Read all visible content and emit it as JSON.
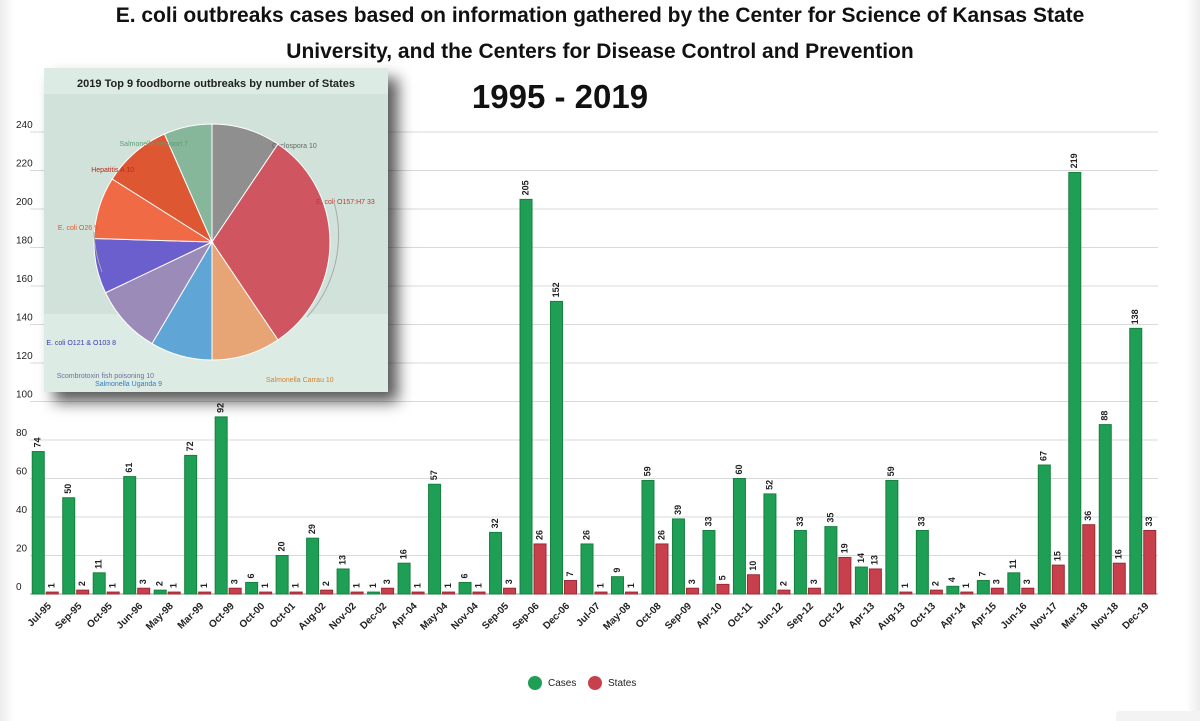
{
  "title_line1": "E. coli outbreaks cases  based on information gathered by the Center for Science of Kansas State",
  "title_line2": "University, and the Centers for Disease Control and Prevention",
  "title_years": "1995 - 2019",
  "colors": {
    "cases": "#1f9e55",
    "states": "#c9404d",
    "grid": "#d9d9d9",
    "inset_bg": "#dcebe4"
  },
  "chart_data": [
    {
      "type": "bar",
      "title": "E. coli outbreaks cases based on information gathered by the Center for Science of Kansas State University, and the Centers for Disease Control and Prevention",
      "subtitle": "1995 - 2019",
      "xlabel": "",
      "ylabel": "",
      "ylim": [
        0,
        240
      ],
      "y_ticks": [
        0,
        20,
        40,
        60,
        80,
        100,
        120,
        140,
        160,
        180,
        200,
        220,
        240
      ],
      "grid": true,
      "legend_position": "bottom-center",
      "categories": [
        "Jul-95",
        "Sep-95",
        "Oct-95",
        "Jun-96",
        "May-98",
        "Mar-99",
        "Oct-99",
        "Oct-00",
        "Oct-01",
        "Aug-02",
        "Nov-02",
        "Dec-02",
        "Apr-04",
        "May-04",
        "Nov-04",
        "Sep-05",
        "Sep-06",
        "Dec-06",
        "Jul-07",
        "May-08",
        "Oct-08",
        "Sep-09",
        "Apr-10",
        "Oct-11",
        "Jun-12",
        "Sep-12",
        "Oct-12",
        "Apr-13",
        "Aug-13",
        "Oct-13",
        "Apr-14",
        "Apr-15",
        "Jun-16",
        "Nov-17",
        "Mar-18",
        "Nov-18",
        "Dec-19"
      ],
      "tick_labels": [
        "Jul-95",
        "Sep-95",
        "Oct-95",
        "Jun-96",
        "May-98",
        "Mar-99",
        "Oct-99",
        "Oct-00",
        "Oct-01",
        "Aug-02",
        "Nov-02",
        "Dec-02",
        "Apr-04",
        "May-04",
        "Nov-04",
        "Sep-05",
        "Sep-06",
        "Dec-06",
        "Jul-07",
        "May-08",
        "Oct-08",
        "Sep-09",
        "Apr-10",
        "Oct-11",
        "Jun-12",
        "Sep-12",
        "Oct-12",
        "Apr-13",
        "Aug-13",
        "Oct-13",
        "Apr-14",
        "Apr-15",
        "Jun-16",
        "Nov-17",
        "Mar-18",
        "Nov-18",
        "Dec-19"
      ],
      "series": [
        {
          "name": "Cases",
          "values": [
            74,
            50,
            11,
            61,
            2,
            72,
            92,
            6,
            20,
            29,
            13,
            1,
            16,
            57,
            6,
            32,
            205,
            152,
            26,
            9,
            59,
            39,
            33,
            60,
            52,
            33,
            35,
            14,
            59,
            33,
            4,
            7,
            11,
            67,
            219,
            88,
            138
          ]
        },
        {
          "name": "States",
          "values": [
            1,
            2,
            1,
            3,
            1,
            1,
            3,
            1,
            1,
            2,
            1,
            3,
            1,
            1,
            1,
            3,
            26,
            7,
            1,
            1,
            26,
            3,
            5,
            10,
            2,
            3,
            19,
            13,
            1,
            2,
            1,
            3,
            3,
            15,
            36,
            16,
            33
          ]
        }
      ]
    },
    {
      "type": "pie",
      "title": "2019 Top 9 foodborne outbreaks by number of States",
      "labels": [
        "Cyclospora",
        "E. coli O157:H7",
        "Salmonella Carrau",
        "Salmonella Uganda",
        "Scombrotoxin fish poisoning",
        "E. coli O121 & O103",
        "E. coli O26",
        "Hepatitis A",
        "Salmonella Newport"
      ],
      "values": [
        10,
        33,
        10,
        9,
        10,
        8,
        9,
        10,
        7
      ],
      "slice_labels": [
        "Cyclospora 10",
        "E. coli O157:H7 33",
        "Salmonella Carrau 10",
        "Salmonella Uganda 9",
        "Scombrotoxin fish poisoning 10",
        "E. coli O121 & O103 8",
        "E. coli O26 9",
        "Hepatitis A 10",
        "Salmonella Newport 7"
      ],
      "colors": [
        "#8f8f8f",
        "#cf5560",
        "#e7a474",
        "#5fa6d6",
        "#9b8bb8",
        "#6b5fce",
        "#f06a46",
        "#dd5733",
        "#87b79a"
      ],
      "label_colors": [
        "#666666",
        "#c0392b",
        "#d9822b",
        "#2d7fc1",
        "#6f6f9a",
        "#3d3ab0",
        "#e0592b",
        "#b8281b",
        "#5c9c77"
      ]
    }
  ]
}
